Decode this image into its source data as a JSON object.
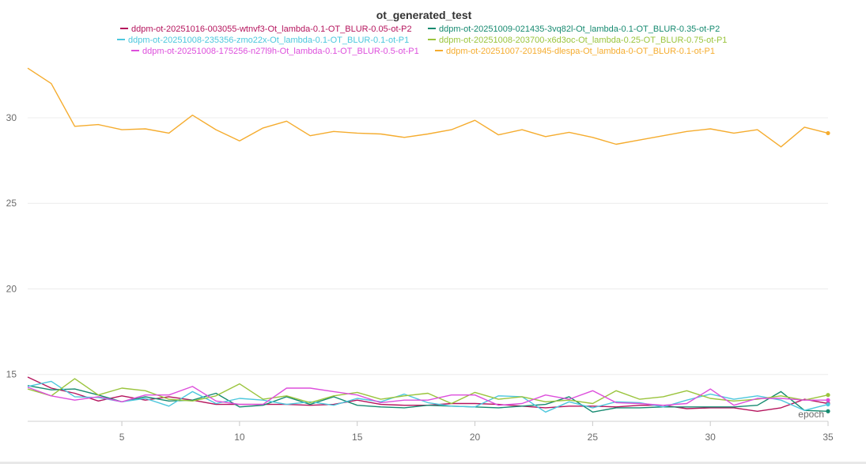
{
  "chart_data": {
    "type": "line",
    "title": "ot_generated_test",
    "xlabel": "epoch",
    "ylabel": "",
    "xlim": [
      1,
      35
    ],
    "ylim": [
      12.4,
      33.0
    ],
    "xticks": [
      5,
      10,
      15,
      20,
      25,
      30,
      35
    ],
    "yticks": [
      15,
      20,
      25,
      30
    ],
    "grid": true,
    "legend_position": "top",
    "series": [
      {
        "name": "ddpm-ot-20251016-003055-wtnvf3-Ot_lambda-0.1-OT_BLUR-0.05-ot-P2",
        "color": "#b5145d",
        "values": [
          14.85,
          14.2,
          13.9,
          13.45,
          13.75,
          13.5,
          13.7,
          13.5,
          13.25,
          13.25,
          13.25,
          13.25,
          13.2,
          13.25,
          13.5,
          13.25,
          13.2,
          13.2,
          13.3,
          13.3,
          13.25,
          13.15,
          13.05,
          13.15,
          13.15,
          13.1,
          13.2,
          13.2,
          13.0,
          13.05,
          13.05,
          12.85,
          13.05,
          13.55,
          13.3
        ]
      },
      {
        "name": "ddpm-ot-20251009-021435-3vq82l-Ot_lambda-0.1-OT_BLUR-0.35-ot-P2",
        "color": "#168a70",
        "values": [
          14.35,
          14.1,
          14.15,
          13.8,
          13.4,
          13.7,
          13.45,
          13.5,
          13.9,
          13.1,
          13.2,
          13.7,
          13.25,
          13.7,
          13.2,
          13.1,
          13.05,
          13.2,
          13.15,
          13.1,
          13.05,
          13.15,
          13.25,
          13.7,
          12.8,
          13.05,
          13.05,
          13.1,
          13.1,
          13.1,
          13.1,
          13.2,
          14.0,
          12.9,
          12.85
        ]
      },
      {
        "name": "ddpm-ot-20251008-235356-zmo22x-Ot_lambda-0.1-OT_BLUR-0.1-ot-P1",
        "color": "#4cc7dd",
        "values": [
          14.3,
          14.6,
          13.7,
          13.65,
          13.4,
          13.6,
          13.15,
          14.0,
          13.3,
          13.6,
          13.5,
          13.25,
          13.4,
          13.2,
          13.6,
          13.4,
          13.85,
          13.35,
          13.15,
          13.1,
          13.75,
          13.7,
          12.8,
          13.4,
          13.05,
          13.4,
          13.35,
          13.1,
          13.5,
          13.85,
          13.55,
          13.75,
          13.5,
          12.9,
          13.25
        ]
      },
      {
        "name": "ddpm-ot-20251008-203700-x6d3oc-Ot_lambda-0.25-OT_BLUR-0.75-ot-P1",
        "color": "#9ac43c",
        "values": [
          14.15,
          13.75,
          14.75,
          13.8,
          14.2,
          14.05,
          13.55,
          13.45,
          13.75,
          14.45,
          13.55,
          13.75,
          13.35,
          13.75,
          13.95,
          13.55,
          13.75,
          13.9,
          13.3,
          13.95,
          13.55,
          13.7,
          13.4,
          13.5,
          13.3,
          14.05,
          13.55,
          13.7,
          14.05,
          13.6,
          13.45,
          13.55,
          13.75,
          13.5,
          13.8
        ]
      },
      {
        "name": "ddpm-ot-20251008-175256-n27l9h-Ot_lambda-0.1-OT_BLUR-0.5-ot-P1",
        "color": "#dd4fdc",
        "values": [
          14.25,
          13.75,
          13.5,
          13.7,
          13.4,
          13.8,
          13.8,
          14.3,
          13.45,
          13.25,
          13.25,
          14.2,
          14.2,
          14.0,
          13.8,
          13.35,
          13.5,
          13.5,
          13.8,
          13.8,
          13.2,
          13.3,
          13.8,
          13.55,
          14.05,
          13.35,
          13.3,
          13.2,
          13.3,
          14.15,
          13.2,
          13.6,
          13.6,
          13.5,
          13.5
        ]
      },
      {
        "name": "ddpm-ot-20251007-201945-dlespa-Ot_lambda-0-OT_BLUR-0.1-ot-P1",
        "color": "#f5ac2e",
        "values": [
          32.9,
          32.0,
          29.5,
          29.6,
          29.3,
          29.35,
          29.1,
          30.15,
          29.3,
          28.65,
          29.4,
          29.8,
          28.95,
          29.2,
          29.1,
          29.05,
          28.85,
          29.05,
          29.3,
          29.85,
          29.0,
          29.3,
          28.9,
          29.15,
          28.85,
          28.45,
          28.7,
          28.95,
          29.2,
          29.35,
          29.1,
          29.3,
          28.3,
          29.45,
          29.1
        ]
      }
    ]
  }
}
